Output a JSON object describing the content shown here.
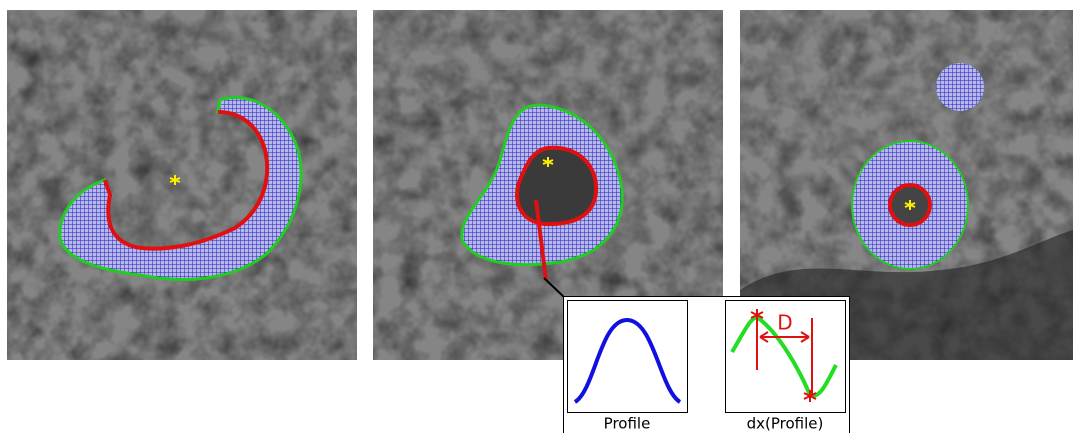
{
  "inset": {
    "plots": [
      {
        "label": "Profile"
      },
      {
        "label": "dx(Profile)",
        "annotation": "D"
      }
    ]
  }
}
